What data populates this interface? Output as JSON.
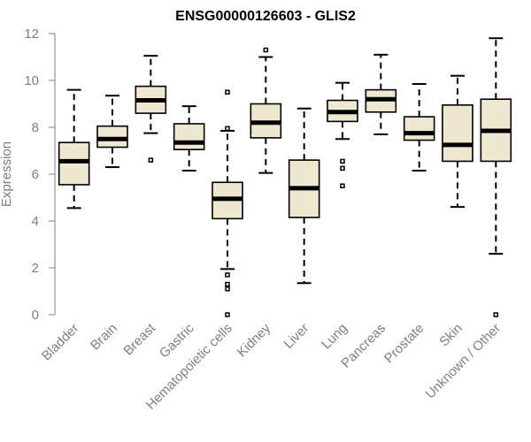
{
  "chart_data": {
    "type": "box",
    "title": "ENSG00000126603 - GLIS2",
    "xlabel": "",
    "ylabel": "Expression",
    "ylim": [
      0,
      12
    ],
    "yticks": [
      0,
      2,
      4,
      6,
      8,
      10,
      12
    ],
    "grid": false,
    "colors": {
      "box_fill": "#efe8d0",
      "stroke": "#000000",
      "axis": "#7f7f7f"
    },
    "categories": [
      "Bladder",
      "Brain",
      "Breast",
      "Gastric",
      "Hematopoietic cells",
      "Kidney",
      "Liver",
      "Lung",
      "Pancreas",
      "Prostate",
      "Skin",
      "Unknown / Other"
    ],
    "boxes": [
      {
        "min": 4.55,
        "q1": 5.55,
        "median": 6.55,
        "q3": 7.35,
        "max": 9.6,
        "outliers": []
      },
      {
        "min": 6.3,
        "q1": 7.15,
        "median": 7.5,
        "q3": 8.05,
        "max": 9.35,
        "outliers": []
      },
      {
        "min": 7.75,
        "q1": 8.6,
        "median": 9.15,
        "q3": 9.75,
        "max": 11.05,
        "outliers": [
          6.6
        ]
      },
      {
        "min": 6.15,
        "q1": 7.05,
        "median": 7.35,
        "q3": 8.15,
        "max": 8.9,
        "outliers": []
      },
      {
        "min": 1.95,
        "q1": 4.1,
        "median": 4.95,
        "q3": 5.65,
        "max": 7.85,
        "outliers": [
          9.5,
          7.95,
          1.7,
          1.3,
          1.1,
          0.0
        ]
      },
      {
        "min": 6.05,
        "q1": 7.55,
        "median": 8.2,
        "q3": 9.0,
        "max": 11.0,
        "outliers": [
          11.3
        ]
      },
      {
        "min": 1.35,
        "q1": 4.15,
        "median": 5.4,
        "q3": 6.6,
        "max": 8.8,
        "outliers": []
      },
      {
        "min": 7.5,
        "q1": 8.25,
        "median": 8.65,
        "q3": 9.15,
        "max": 9.9,
        "outliers": [
          6.55,
          6.25,
          5.5
        ]
      },
      {
        "min": 7.7,
        "q1": 8.65,
        "median": 9.2,
        "q3": 9.6,
        "max": 11.1,
        "outliers": []
      },
      {
        "min": 6.15,
        "q1": 7.45,
        "median": 7.75,
        "q3": 8.45,
        "max": 9.85,
        "outliers": []
      },
      {
        "min": 4.6,
        "q1": 6.55,
        "median": 7.25,
        "q3": 8.95,
        "max": 10.2,
        "outliers": []
      },
      {
        "min": 2.6,
        "q1": 6.55,
        "median": 7.85,
        "q3": 9.2,
        "max": 11.8,
        "outliers": [
          0.0
        ]
      }
    ]
  }
}
